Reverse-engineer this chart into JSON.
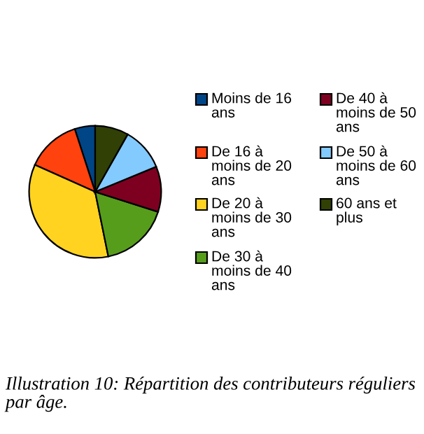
{
  "chart_data": {
    "type": "pie",
    "categories": [
      "Moins de 16 ans",
      "De 16 à moins de 20 ans",
      "De 20 à moins de 30 ans",
      "De 30 à moins de 40 ans",
      "De 40 à moins de 50 ans",
      "De 50 à moins de 60 ans",
      "60 ans et plus"
    ],
    "values": [
      5,
      13.3,
      34.9,
      16.9,
      11.1,
      10.6,
      8.2
    ],
    "colors": [
      "#004586",
      "#ff420e",
      "#ffd320",
      "#579d1c",
      "#7e0021",
      "#83caff",
      "#314004"
    ],
    "legend": "right",
    "annotations": [
      "Illustration 10: Répartition des contributeurs réguliers par âge."
    ]
  }
}
